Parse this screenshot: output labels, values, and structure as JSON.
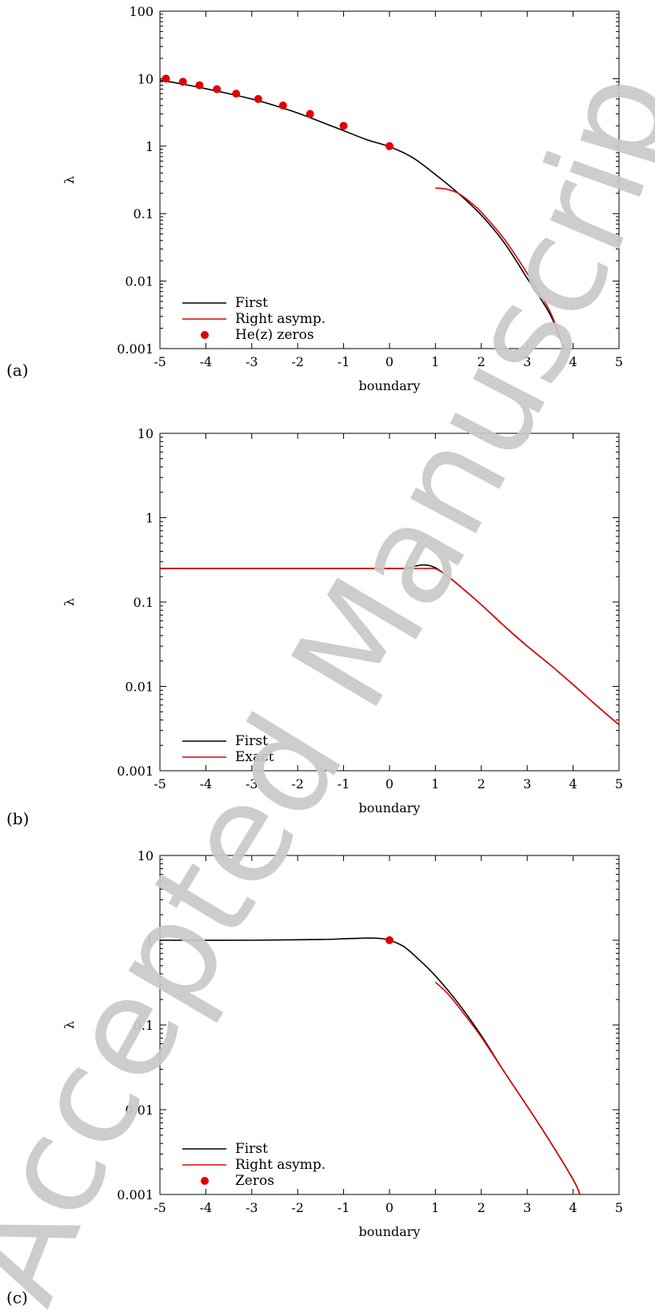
{
  "figure": {
    "watermark": "Accepted Manuscript"
  },
  "colors": {
    "first": "#000000",
    "asymp": "#e00000",
    "markers": "#e00000",
    "watermark": "#c9c9c9"
  },
  "chart_data": [
    {
      "id": "a",
      "type": "line",
      "panel_label": "(a)",
      "xlabel": "boundary",
      "ylabel": "λ",
      "log_y": true,
      "xlim": [
        -5,
        5
      ],
      "ylim": [
        0.001,
        100
      ],
      "xticks": [
        "-5",
        "-4",
        "-3",
        "-2",
        "-1",
        "0",
        "1",
        "2",
        "3",
        "4",
        "5"
      ],
      "yticks": [
        "0.001",
        "0.01",
        "0.1",
        "1",
        "10",
        "100"
      ],
      "legend_position": "bottom-left",
      "series": [
        {
          "name": "First",
          "kind": "line",
          "color": "#000000",
          "x": [
            -5,
            -4.5,
            -4,
            -3.5,
            -3,
            -2.5,
            -2,
            -1.5,
            -1,
            -0.5,
            0,
            0.5,
            1,
            1.5,
            2,
            2.5,
            3,
            3.5,
            3.8
          ],
          "y": [
            9.5,
            8.3,
            7.1,
            6.0,
            5.0,
            4.0,
            3.1,
            2.3,
            1.7,
            1.25,
            0.98,
            0.68,
            0.38,
            0.2,
            0.095,
            0.037,
            0.011,
            0.0032,
            0.001
          ]
        },
        {
          "name": "Right asymp.",
          "kind": "line",
          "color": "#e00000",
          "x": [
            1,
            1.25,
            1.5,
            1.75,
            2,
            2.5,
            3,
            3.5,
            3.8
          ],
          "y": [
            0.24,
            0.23,
            0.2,
            0.15,
            0.105,
            0.042,
            0.013,
            0.0035,
            0.001
          ]
        },
        {
          "name": "He(z) zeros",
          "kind": "scatter",
          "color": "#e00000",
          "x": [
            -4.87,
            -4.5,
            -4.14,
            -3.76,
            -3.34,
            -2.86,
            -2.32,
            -1.73,
            -1.0,
            0.0
          ],
          "y": [
            10,
            9,
            8,
            7,
            6,
            5,
            4,
            3,
            2,
            1
          ]
        }
      ]
    },
    {
      "id": "b",
      "type": "line",
      "panel_label": "(b)",
      "xlabel": "boundary",
      "ylabel": "λ",
      "log_y": true,
      "xlim": [
        -5,
        5
      ],
      "ylim": [
        0.001,
        10
      ],
      "xticks": [
        "-5",
        "-4",
        "-3",
        "-2",
        "-1",
        "0",
        "1",
        "2",
        "3",
        "4",
        "5"
      ],
      "yticks": [
        "0.001",
        "0.01",
        "0.1",
        "1",
        "10"
      ],
      "legend_position": "bottom-left",
      "series": [
        {
          "name": "First",
          "kind": "line",
          "color": "#000000",
          "x": [
            -5,
            -2,
            -0.5,
            0,
            0.3,
            0.5,
            0.7,
            0.85,
            1.0,
            1.2,
            1.5,
            2,
            2.5,
            3,
            3.5,
            4,
            4.5,
            5
          ],
          "y": [
            0.25,
            0.25,
            0.25,
            0.25,
            0.25,
            0.262,
            0.275,
            0.272,
            0.255,
            0.215,
            0.16,
            0.093,
            0.052,
            0.03,
            0.018,
            0.0105,
            0.006,
            0.0035
          ]
        },
        {
          "name": "Exact",
          "kind": "line",
          "color": "#e00000",
          "x": [
            -5,
            -2,
            -0.5,
            0,
            0.5,
            0.8,
            1.0,
            1.2,
            1.5,
            2,
            2.5,
            3,
            3.5,
            4,
            4.5,
            5
          ],
          "y": [
            0.25,
            0.25,
            0.25,
            0.25,
            0.25,
            0.25,
            0.248,
            0.215,
            0.16,
            0.093,
            0.052,
            0.03,
            0.018,
            0.0105,
            0.006,
            0.0035
          ]
        }
      ]
    },
    {
      "id": "c",
      "type": "line",
      "panel_label": "(c)",
      "xlabel": "boundary",
      "ylabel": "λ",
      "log_y": true,
      "xlim": [
        -5,
        5
      ],
      "ylim": [
        0.001,
        10
      ],
      "xticks": [
        "-5",
        "-4",
        "-3",
        "-2",
        "-1",
        "0",
        "1",
        "2",
        "3",
        "4",
        "5"
      ],
      "yticks": [
        "0.001",
        "0.01",
        "0.1",
        "1",
        "10"
      ],
      "legend_position": "bottom-left",
      "series": [
        {
          "name": "First",
          "kind": "line",
          "color": "#000000",
          "x": [
            -5,
            -3,
            -1.5,
            -1,
            -0.5,
            -0.2,
            0,
            0.3,
            0.6,
            1,
            1.5,
            2,
            2.5,
            3,
            3.5,
            4,
            4.15
          ],
          "y": [
            1,
            1,
            1.02,
            1.04,
            1.06,
            1.05,
            1.0,
            0.85,
            0.62,
            0.38,
            0.18,
            0.075,
            0.028,
            0.011,
            0.0042,
            0.0015,
            0.001
          ]
        },
        {
          "name": "Right asymp.",
          "kind": "line",
          "color": "#e00000",
          "x": [
            1,
            1.25,
            1.5,
            1.75,
            2,
            2.5,
            3,
            3.5,
            4,
            4.15
          ],
          "y": [
            0.32,
            0.24,
            0.165,
            0.11,
            0.072,
            0.028,
            0.011,
            0.0042,
            0.0015,
            0.001
          ]
        },
        {
          "name": "Zeros",
          "kind": "scatter",
          "color": "#e00000",
          "x": [
            0
          ],
          "y": [
            1
          ]
        }
      ]
    }
  ]
}
